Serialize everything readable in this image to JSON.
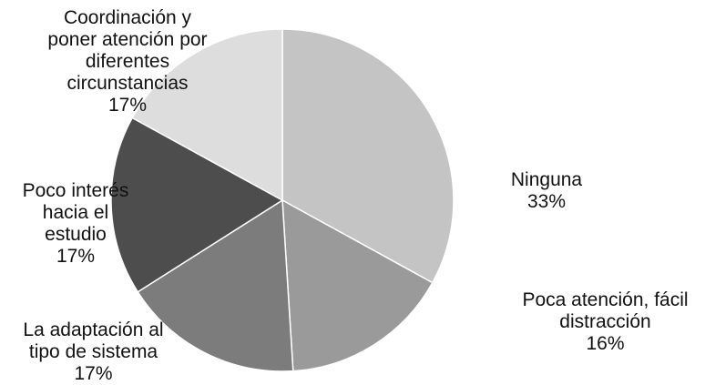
{
  "chart_data": {
    "type": "pie",
    "slices": [
      {
        "label": "Ninguna",
        "value": 33,
        "display": "33%",
        "color": "#c4c4c4"
      },
      {
        "label": "Poca atención, fácil distracción",
        "value": 16,
        "display": "16%",
        "color": "#9a9a9a"
      },
      {
        "label": "La adaptación al tipo de sistema",
        "value": 17,
        "display": "17%",
        "color": "#7c7c7c"
      },
      {
        "label": "Poco interés hacia el estudio",
        "value": 17,
        "display": "17%",
        "color": "#4d4d4d"
      },
      {
        "label": "Coordinación y poner atención por diferentes circunstancias",
        "value": 17,
        "display": "17%",
        "color": "#dddddd"
      }
    ]
  },
  "labels": [
    {
      "name": "Ninguna",
      "pct": "33%"
    },
    {
      "name": "Poca atención, fácil\ndistracción",
      "pct": "16%"
    },
    {
      "name": "La adaptación al\ntipo de sistema",
      "pct": "17%"
    },
    {
      "name": "Poco interés\nhacia el\nestudio",
      "pct": "17%"
    },
    {
      "name": "Coordinación y\nponer atención por\ndiferentes\ncircunstancias",
      "pct": "17%"
    }
  ]
}
